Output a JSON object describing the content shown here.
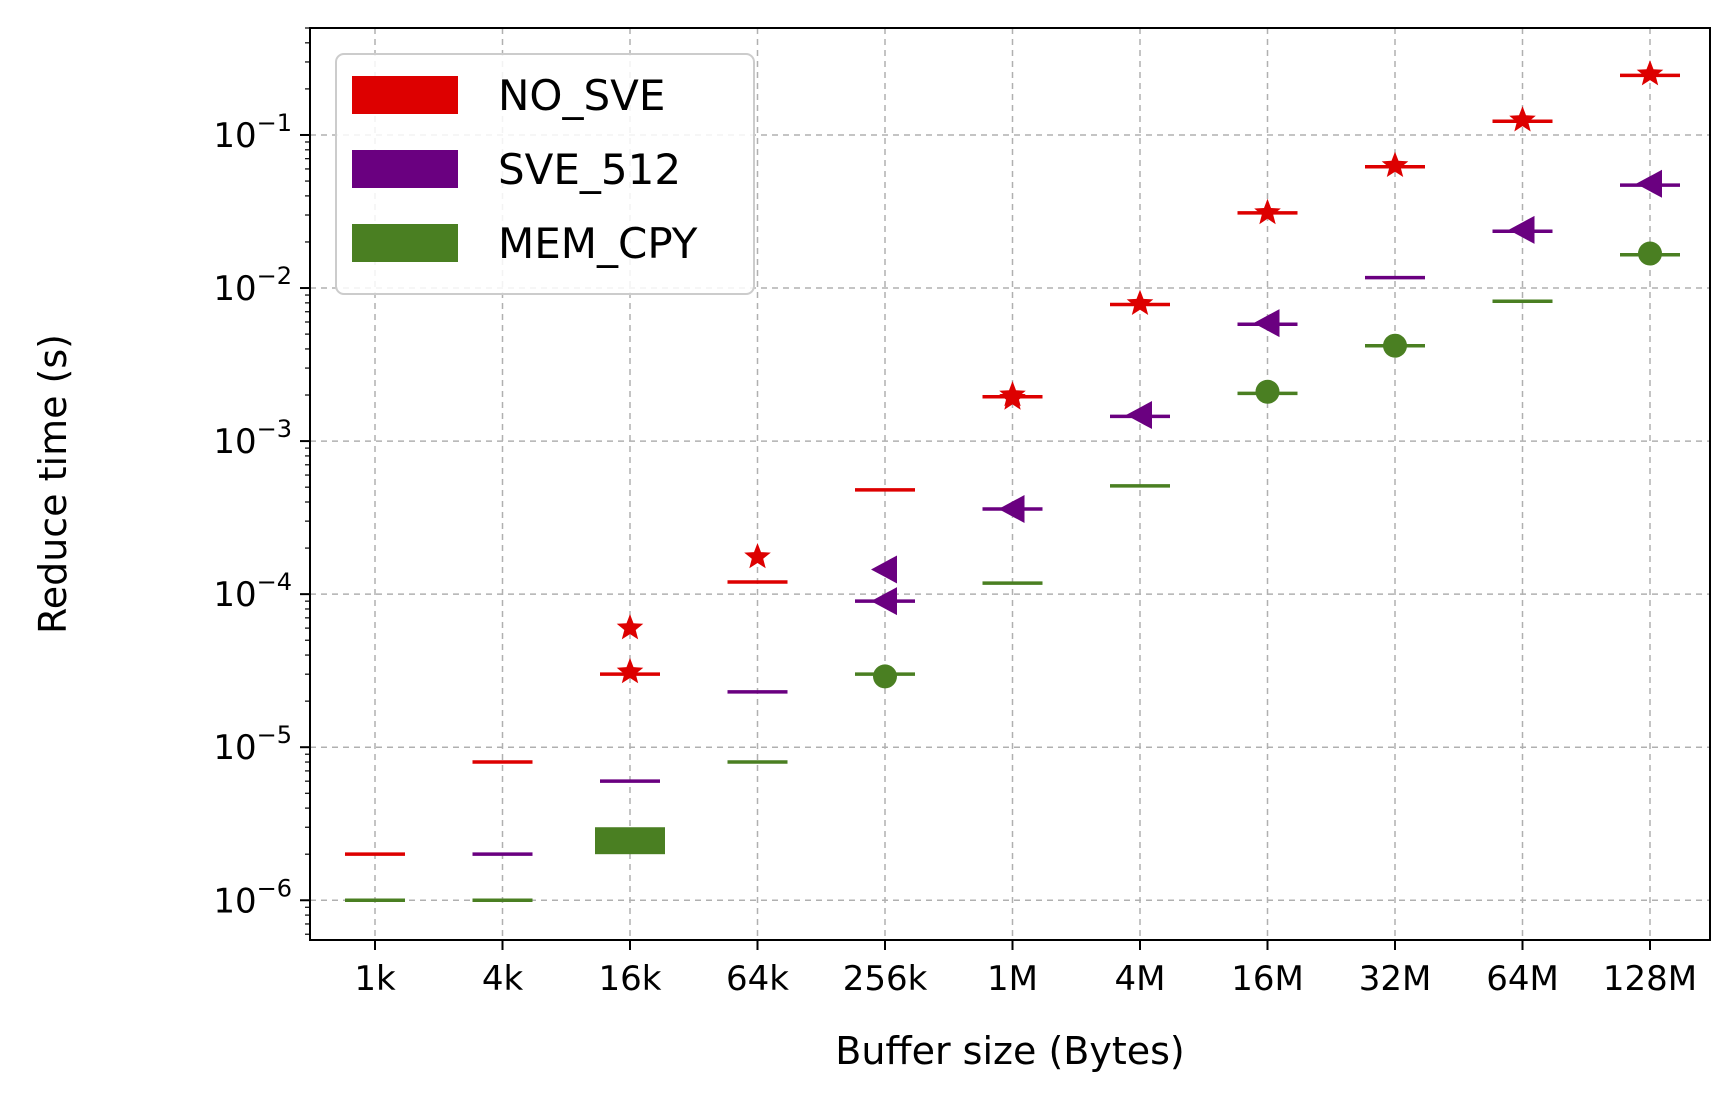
{
  "chart_data": {
    "type": "scatter",
    "title": "",
    "xlabel": "Buffer size (Bytes)",
    "ylabel": "Reduce time (s)",
    "yscale": "log",
    "ylim": [
      5.5e-07,
      0.5
    ],
    "grid": true,
    "legend_position": "top-left",
    "categories": [
      "1k",
      "4k",
      "16k",
      "64k",
      "256k",
      "1M",
      "4M",
      "16M",
      "32M",
      "64M",
      "128M"
    ],
    "yticks": [
      {
        "base": "10",
        "exp": "−6"
      },
      {
        "base": "10",
        "exp": "−5"
      },
      {
        "base": "10",
        "exp": "−4"
      },
      {
        "base": "10",
        "exp": "−3"
      },
      {
        "base": "10",
        "exp": "−2"
      },
      {
        "base": "10",
        "exp": "−1"
      }
    ],
    "series": [
      {
        "name": "NO_SVE",
        "color": "#dd0000",
        "marker": "star",
        "medians": [
          2e-06,
          8e-06,
          3e-05,
          0.00012,
          0.00048,
          0.00195,
          0.0078,
          0.031,
          0.062,
          0.123,
          0.245
        ],
        "points": [
          [],
          [],
          [
            6e-05,
            3.1e-05
          ],
          [
            0.000175
          ],
          [],
          [
            0.002,
            0.0019
          ],
          [
            0.0079
          ],
          [
            0.031
          ],
          [
            0.063
          ],
          [
            0.125
          ],
          [
            0.25
          ]
        ]
      },
      {
        "name": "SVE_512",
        "color": "#6a0080",
        "marker": "triangle-left",
        "medians": [
          null,
          2e-06,
          6e-06,
          2.3e-05,
          9e-05,
          0.00036,
          0.00145,
          0.0058,
          0.0117,
          0.0235,
          0.047
        ],
        "points": [
          [],
          [],
          [],
          [],
          [
            0.000145,
            9e-05
          ],
          [
            0.00036
          ],
          [
            0.00148
          ],
          [
            0.0059
          ],
          [],
          [
            0.024
          ],
          [
            0.048
          ]
        ]
      },
      {
        "name": "MEM_CPY",
        "color": "#4a7f22",
        "marker": "circle",
        "medians": [
          1e-06,
          1e-06,
          2.5e-06,
          8e-06,
          3e-05,
          0.000118,
          0.00051,
          0.00205,
          0.0042,
          0.0082,
          0.0165
        ],
        "points": [
          [],
          [],
          [],
          [],
          [
            2.9e-05
          ],
          [],
          [],
          [
            0.0021
          ],
          [
            0.0042
          ],
          [],
          [
            0.0168
          ]
        ],
        "boxes": [
          null,
          null,
          [
            2e-06,
            3e-06
          ],
          null,
          null,
          null,
          null,
          null,
          null,
          null,
          null
        ]
      }
    ]
  }
}
